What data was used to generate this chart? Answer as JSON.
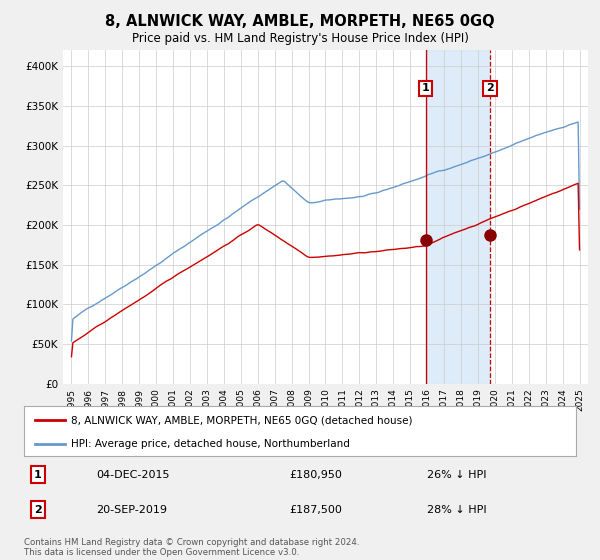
{
  "title": "8, ALNWICK WAY, AMBLE, MORPETH, NE65 0GQ",
  "subtitle": "Price paid vs. HM Land Registry's House Price Index (HPI)",
  "legend_line1": "8, ALNWICK WAY, AMBLE, MORPETH, NE65 0GQ (detached house)",
  "legend_line2": "HPI: Average price, detached house, Northumberland",
  "transaction1_date": "04-DEC-2015",
  "transaction1_price": "£180,950",
  "transaction1_hpi": "26% ↓ HPI",
  "transaction2_date": "20-SEP-2019",
  "transaction2_price": "£187,500",
  "transaction2_hpi": "28% ↓ HPI",
  "copyright": "Contains HM Land Registry data © Crown copyright and database right 2024.\nThis data is licensed under the Open Government Licence v3.0.",
  "red_color": "#cc0000",
  "blue_color": "#6699cc",
  "shade_color": "#d0e4f7",
  "background_color": "#f0f0f0",
  "plot_bg_color": "#ffffff",
  "marker1_x": 2015.92,
  "marker2_x": 2019.72,
  "marker1_y": 180950,
  "marker2_y": 187500,
  "ylim": [
    0,
    420000
  ],
  "xlim": [
    1994.5,
    2025.5
  ]
}
